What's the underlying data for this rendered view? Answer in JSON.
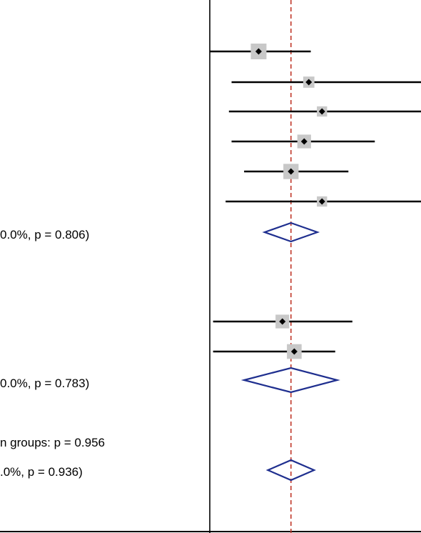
{
  "chart_data": {
    "type": "forest",
    "colors": {
      "ci_line": "#000000",
      "weight_box": "#c8c8c8",
      "point": "#000000",
      "diamond": "#1f2f8f",
      "reference_line": "#c0392b",
      "axis": "#000000"
    },
    "labels": [
      {
        "id": "subgroup1-heterogeneity",
        "text": "0.0%, p = 0.806)"
      },
      {
        "id": "subgroup2-heterogeneity",
        "text": "0.0%, p = 0.783)"
      },
      {
        "id": "between-groups",
        "text": "n groups: p = 0.956"
      },
      {
        "id": "overall-heterogeneity",
        "text": ".0%, p = 0.936)"
      }
    ],
    "studies": [
      {
        "subgroup": 1,
        "estimate": 0.74,
        "lower": 0.0,
        "upper": 1.53,
        "weight": 1.0
      },
      {
        "subgroup": 1,
        "estimate": 1.5,
        "lower": 0.33,
        "upper": 3.2,
        "weight": 0.55
      },
      {
        "subgroup": 1,
        "estimate": 1.7,
        "lower": 0.29,
        "upper": 3.2,
        "weight": 0.45
      },
      {
        "subgroup": 1,
        "estimate": 1.43,
        "lower": 0.33,
        "upper": 2.5,
        "weight": 0.8
      },
      {
        "subgroup": 1,
        "estimate": 1.23,
        "lower": 0.52,
        "upper": 2.1,
        "weight": 0.95
      },
      {
        "subgroup": 1,
        "estimate": 1.7,
        "lower": 0.24,
        "upper": 3.2,
        "weight": 0.45
      },
      {
        "subgroup": 2,
        "estimate": 1.1,
        "lower": 0.05,
        "upper": 2.16,
        "weight": 0.8
      },
      {
        "subgroup": 2,
        "estimate": 1.28,
        "lower": 0.05,
        "upper": 1.9,
        "weight": 0.9
      }
    ],
    "pooled": [
      {
        "id": "subgroup1",
        "estimate": 1.23,
        "lower": 0.83,
        "upper": 1.63
      },
      {
        "id": "subgroup2",
        "estimate": 1.23,
        "lower": 0.52,
        "upper": 1.93
      },
      {
        "id": "overall",
        "estimate": 1.23,
        "lower": 0.88,
        "upper": 1.58
      }
    ],
    "reference_value": 1.23,
    "axis_origin": 0.0,
    "xlim": [
      0.0,
      3.2
    ]
  }
}
